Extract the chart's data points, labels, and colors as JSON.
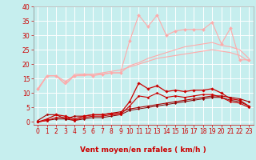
{
  "xlabel": "Vent moyen/en rafales ( km/h )",
  "xlim": [
    -0.5,
    23.5
  ],
  "ylim": [
    -1,
    40
  ],
  "xticks": [
    0,
    1,
    2,
    3,
    4,
    5,
    6,
    7,
    8,
    9,
    10,
    11,
    12,
    13,
    14,
    15,
    16,
    17,
    18,
    19,
    20,
    21,
    22,
    23
  ],
  "yticks": [
    0,
    5,
    10,
    15,
    20,
    25,
    30,
    35,
    40
  ],
  "bg_color": "#c6eeee",
  "grid_color": "#ffffff",
  "series": [
    {
      "x": [
        0,
        1,
        2,
        3,
        4,
        5,
        6,
        7,
        8,
        9,
        10,
        11,
        12,
        13,
        14,
        15,
        16,
        17,
        18,
        19,
        20,
        21,
        22,
        23
      ],
      "y": [
        11.5,
        16,
        16,
        14,
        16,
        16.5,
        16,
        16.5,
        17,
        17,
        28,
        37,
        33,
        37,
        30,
        31.5,
        32,
        32,
        32,
        34.5,
        27,
        32.5,
        21.5,
        21.5
      ],
      "color": "#ffaaaa",
      "lw": 0.8,
      "marker": "D",
      "ms": 2.0,
      "zorder": 2
    },
    {
      "x": [
        0,
        1,
        2,
        3,
        4,
        5,
        6,
        7,
        8,
        9,
        10,
        11,
        12,
        13,
        14,
        15,
        16,
        17,
        18,
        19,
        20,
        21,
        22,
        23
      ],
      "y": [
        11.5,
        16,
        16,
        13,
        16.5,
        16.5,
        16.5,
        16.5,
        17,
        17,
        19.5,
        20.5,
        22,
        23,
        24,
        25,
        26,
        26.5,
        27,
        27.5,
        26.5,
        26,
        25,
        22
      ],
      "color": "#ffaaaa",
      "lw": 0.8,
      "marker": null,
      "ms": 0,
      "zorder": 2
    },
    {
      "x": [
        0,
        1,
        2,
        3,
        4,
        5,
        6,
        7,
        8,
        9,
        10,
        11,
        12,
        13,
        14,
        15,
        16,
        17,
        18,
        19,
        20,
        21,
        22,
        23
      ],
      "y": [
        11,
        16,
        16,
        13,
        16,
        16,
        16.5,
        17,
        17.5,
        18,
        19,
        20,
        21,
        22,
        22.5,
        23,
        23.5,
        24,
        24.5,
        25,
        24.5,
        24,
        23,
        21
      ],
      "color": "#ffaaaa",
      "lw": 0.8,
      "marker": null,
      "ms": 0,
      "zorder": 2
    },
    {
      "x": [
        0,
        1,
        2,
        3,
        4,
        5,
        6,
        7,
        8,
        9,
        10,
        11,
        12,
        13,
        14,
        15,
        16,
        17,
        18,
        19,
        20,
        21,
        22,
        23
      ],
      "y": [
        0,
        1,
        2.5,
        2,
        1,
        2,
        2.5,
        2.5,
        3,
        3,
        7,
        13.5,
        11.5,
        12.5,
        10.5,
        11,
        10.5,
        11,
        11,
        11.5,
        10,
        8,
        7.5,
        5.5
      ],
      "color": "#cc0000",
      "lw": 0.9,
      "marker": "D",
      "ms": 1.8,
      "zorder": 5
    },
    {
      "x": [
        0,
        1,
        2,
        3,
        4,
        5,
        6,
        7,
        8,
        9,
        10,
        11,
        12,
        13,
        14,
        15,
        16,
        17,
        18,
        19,
        20,
        21,
        22,
        23
      ],
      "y": [
        0,
        0.5,
        1.5,
        1.5,
        0.5,
        1.5,
        2,
        2,
        2.5,
        2.5,
        5.5,
        9,
        8.5,
        10,
        8.5,
        9,
        8.5,
        9,
        9.5,
        9.5,
        8.5,
        7,
        6.5,
        5
      ],
      "color": "#cc0000",
      "lw": 0.8,
      "marker": "D",
      "ms": 1.5,
      "zorder": 4
    },
    {
      "x": [
        0,
        1,
        2,
        3,
        4,
        5,
        6,
        7,
        8,
        9,
        10,
        11,
        12,
        13,
        14,
        15,
        16,
        17,
        18,
        19,
        20,
        21,
        22,
        23
      ],
      "y": [
        0.5,
        2.5,
        2.5,
        1,
        2,
        2,
        2.5,
        2.5,
        3,
        3.5,
        4.5,
        5,
        5.5,
        6,
        6.5,
        7,
        7.5,
        8,
        8.5,
        9,
        9,
        8.5,
        8,
        7
      ],
      "color": "#aa0000",
      "lw": 0.8,
      "marker": "D",
      "ms": 1.5,
      "zorder": 3
    },
    {
      "x": [
        0,
        1,
        2,
        3,
        4,
        5,
        6,
        7,
        8,
        9,
        10,
        11,
        12,
        13,
        14,
        15,
        16,
        17,
        18,
        19,
        20,
        21,
        22,
        23
      ],
      "y": [
        0,
        0.5,
        1,
        1,
        0.5,
        1,
        1.5,
        1.5,
        2,
        2.5,
        4,
        4.5,
        5,
        5.5,
        6,
        6.5,
        7,
        7.5,
        8,
        8.5,
        8.5,
        7.5,
        7,
        5.5
      ],
      "color": "#880000",
      "lw": 0.7,
      "marker": "D",
      "ms": 1.2,
      "zorder": 3
    }
  ],
  "arrow_color": "#cc0000",
  "font_color": "#cc0000",
  "label_fontsize": 5.5,
  "xlabel_fontsize": 6.5
}
